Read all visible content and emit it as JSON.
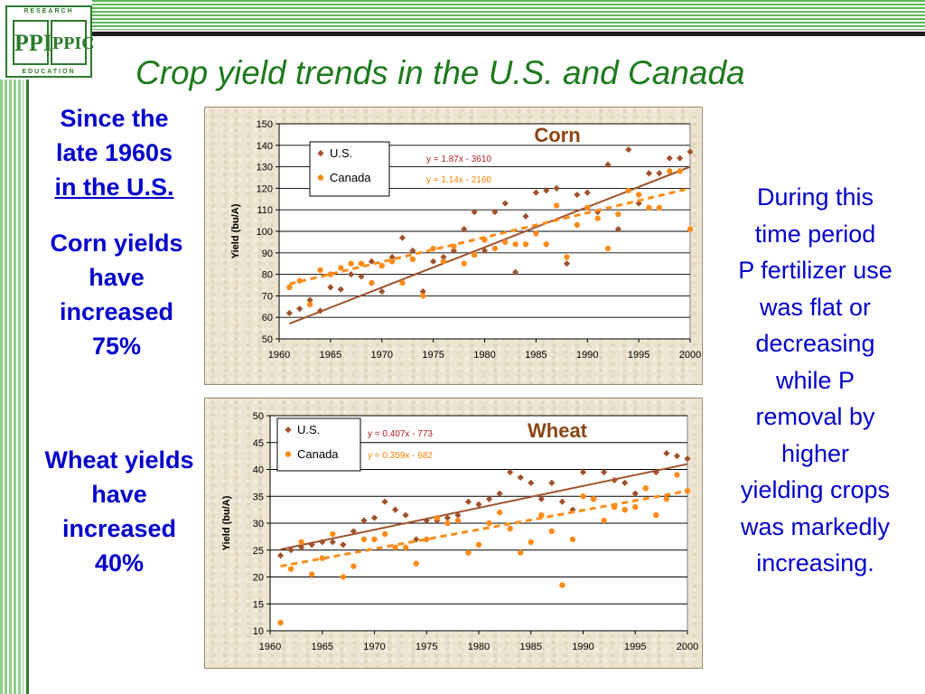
{
  "header": {
    "title": "Crop yield trends in the U.S. and Canada"
  },
  "logo": {
    "top_text": "RESEARCH",
    "bottom_text": "EDUCATION",
    "mark_left": "PPI",
    "mark_right": "PPIC"
  },
  "left_notes": {
    "lead": [
      "Since the",
      "late 1960s"
    ],
    "lead_underlined": "in the U.S.",
    "corn": [
      "Corn yields",
      "have",
      "increased",
      "75%"
    ],
    "wheat": [
      "Wheat yields",
      "have",
      "increased",
      "40%"
    ]
  },
  "right_note": [
    "During this",
    "time period",
    "P fertilizer use",
    "was flat or",
    "decreasing",
    "while P",
    "removal by",
    "higher",
    "yielding crops",
    "was markedly",
    "increasing."
  ],
  "colors": {
    "us": "#a0522d",
    "canada": "#ff8c1a",
    "side_text": "#0000cc",
    "title": "#1f7a1f"
  },
  "chart_data": [
    {
      "type": "scatter",
      "title": "Corn",
      "ylabel": "Yield (bu/A)",
      "xlabel": "",
      "xlim": [
        1960,
        2000
      ],
      "ylim": [
        50,
        150
      ],
      "xticks": [
        1960,
        1965,
        1970,
        1975,
        1980,
        1985,
        1990,
        1995,
        2000
      ],
      "yticks": [
        50,
        60,
        70,
        80,
        90,
        100,
        110,
        120,
        130,
        140,
        150
      ],
      "grid": "horizontal",
      "legend": "top-left",
      "series": [
        {
          "name": "U.S.",
          "marker": "diamond",
          "color": "#a0522d",
          "trend": {
            "label": "y = 1.87x - 3610",
            "slope": 1.87,
            "intercept": -3610,
            "style": "solid"
          },
          "x": [
            1961,
            1962,
            1963,
            1964,
            1965,
            1966,
            1967,
            1968,
            1969,
            1970,
            1971,
            1972,
            1973,
            1974,
            1975,
            1976,
            1977,
            1978,
            1979,
            1980,
            1981,
            1982,
            1983,
            1984,
            1985,
            1986,
            1987,
            1988,
            1989,
            1990,
            1991,
            1992,
            1993,
            1994,
            1995,
            1996,
            1997,
            1998,
            1999,
            2000
          ],
          "y": [
            62,
            64,
            68,
            63,
            74,
            73,
            80,
            79,
            86,
            72,
            88,
            97,
            91,
            72,
            86,
            88,
            91,
            101,
            109,
            91,
            109,
            113,
            81,
            107,
            118,
            119,
            120,
            85,
            117,
            118,
            109,
            131,
            101,
            138,
            113,
            127,
            127,
            134,
            134,
            137
          ]
        },
        {
          "name": "Canada",
          "marker": "circle",
          "color": "#ff8c1a",
          "trend": {
            "label": "y = 1.14x - 2160",
            "slope": 1.14,
            "intercept": -2160,
            "style": "dashed"
          },
          "x": [
            1961,
            1962,
            1963,
            1964,
            1965,
            1966,
            1967,
            1968,
            1969,
            1970,
            1971,
            1972,
            1973,
            1974,
            1975,
            1976,
            1977,
            1978,
            1979,
            1980,
            1981,
            1982,
            1983,
            1984,
            1985,
            1986,
            1987,
            1988,
            1989,
            1990,
            1991,
            1992,
            1993,
            1994,
            1995,
            1996,
            1997,
            1998,
            1999,
            2000
          ],
          "y": [
            74,
            77,
            66,
            82,
            80,
            83,
            85,
            85,
            76,
            84,
            86,
            76,
            87,
            70,
            92,
            86,
            93,
            85,
            89,
            96,
            92,
            95,
            94,
            94,
            99,
            94,
            112,
            88,
            103,
            111,
            106,
            92,
            108,
            119,
            117,
            111,
            111,
            128,
            128,
            101
          ]
        }
      ]
    },
    {
      "type": "scatter",
      "title": "Wheat",
      "ylabel": "Yield (bu/A)",
      "xlabel": "",
      "xlim": [
        1960,
        2000
      ],
      "ylim": [
        10,
        50
      ],
      "xticks": [
        1960,
        1965,
        1970,
        1975,
        1980,
        1985,
        1990,
        1995,
        2000
      ],
      "yticks": [
        10,
        15,
        20,
        25,
        30,
        35,
        40,
        45,
        50
      ],
      "grid": "horizontal",
      "legend": "top-left",
      "series": [
        {
          "name": "U.S.",
          "marker": "diamond",
          "color": "#a0522d",
          "trend": {
            "label": "y = 0.407x - 773",
            "slope": 0.407,
            "intercept": -773,
            "style": "solid"
          },
          "x": [
            1961,
            1962,
            1963,
            1964,
            1965,
            1966,
            1967,
            1968,
            1969,
            1970,
            1971,
            1972,
            1973,
            1974,
            1975,
            1976,
            1977,
            1978,
            1979,
            1980,
            1981,
            1982,
            1983,
            1984,
            1985,
            1986,
            1987,
            1988,
            1989,
            1990,
            1991,
            1992,
            1993,
            1994,
            1995,
            1996,
            1997,
            1998,
            1999,
            2000
          ],
          "y": [
            24,
            25,
            25.5,
            26,
            26.5,
            26.5,
            26,
            28.5,
            30.5,
            31,
            34,
            32.5,
            31.5,
            27,
            30.5,
            30.5,
            31,
            31.5,
            34,
            33.5,
            34.5,
            35.5,
            39.5,
            38.5,
            37.5,
            34.5,
            37.5,
            34,
            32.5,
            39.5,
            34.5,
            39.5,
            38,
            37.5,
            35.5,
            36.5,
            39.5,
            43,
            42.5,
            42
          ]
        },
        {
          "name": "Canada",
          "marker": "circle",
          "color": "#ff8c1a",
          "trend": {
            "label": "y = 0.359x - 682",
            "slope": 0.359,
            "intercept": -682,
            "style": "dashed"
          },
          "x": [
            1961,
            1962,
            1963,
            1964,
            1965,
            1966,
            1967,
            1968,
            1969,
            1970,
            1971,
            1972,
            1973,
            1974,
            1975,
            1976,
            1977,
            1978,
            1979,
            1980,
            1981,
            1982,
            1983,
            1984,
            1985,
            1986,
            1987,
            1988,
            1989,
            1990,
            1991,
            1992,
            1993,
            1994,
            1995,
            1996,
            1997,
            1998,
            1999,
            2000
          ],
          "y": [
            11.5,
            21.5,
            26.5,
            20.5,
            23.5,
            28,
            20,
            22,
            27,
            27,
            28,
            25.5,
            25.5,
            22.5,
            27,
            31,
            30,
            30.5,
            24.5,
            26,
            30,
            32,
            29,
            24.5,
            26.5,
            31.5,
            28.5,
            18.5,
            27,
            35,
            34.5,
            30.5,
            33,
            32.5,
            33,
            36.5,
            31.5,
            34.5,
            39,
            36
          ]
        }
      ]
    }
  ]
}
